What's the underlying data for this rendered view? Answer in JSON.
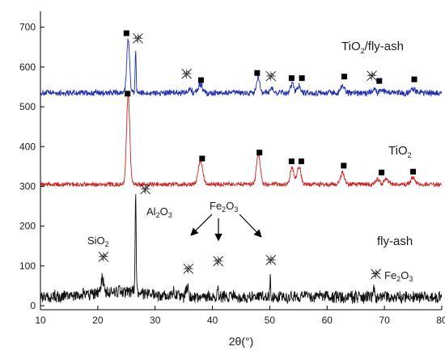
{
  "chart_data": {
    "type": "line",
    "xlabel": "2θ(°)",
    "ylabel": "",
    "xlim": [
      10,
      80
    ],
    "ylim": [
      -10,
      740
    ],
    "x_ticks": [
      10,
      20,
      30,
      40,
      50,
      60,
      70,
      80
    ],
    "y_ticks": [
      0,
      100,
      200,
      300,
      400,
      500,
      600,
      700
    ],
    "grid": false,
    "series": [
      {
        "name": "TiO2/fly-ash",
        "color": "#1f2fb0",
        "baseline": 535,
        "noise": 7,
        "peaks": [
          {
            "x": 25.3,
            "h": 135,
            "w": 0.35
          },
          {
            "x": 26.6,
            "h": 110,
            "w": 0.12
          },
          {
            "x": 36.0,
            "h": 12,
            "w": 0.4
          },
          {
            "x": 37.9,
            "h": 22,
            "w": 0.5
          },
          {
            "x": 48.0,
            "h": 40,
            "w": 0.4
          },
          {
            "x": 50.3,
            "h": 10,
            "w": 0.4
          },
          {
            "x": 53.9,
            "h": 20,
            "w": 0.4
          },
          {
            "x": 55.1,
            "h": 18,
            "w": 0.4
          },
          {
            "x": 62.7,
            "h": 15,
            "w": 0.5
          },
          {
            "x": 68.2,
            "h": 10,
            "w": 0.4
          },
          {
            "x": 69.6,
            "h": 8,
            "w": 0.5
          },
          {
            "x": 75.0,
            "h": 10,
            "w": 0.5
          }
        ],
        "label_main": "TiO",
        "label_sub": "2",
        "label_rest": "/fly-ash"
      },
      {
        "name": "TiO2",
        "color": "#cc2222",
        "baseline": 305,
        "noise": 5,
        "peaks": [
          {
            "x": 25.3,
            "h": 225,
            "w": 0.4
          },
          {
            "x": 37.9,
            "h": 60,
            "w": 0.55
          },
          {
            "x": 48.0,
            "h": 75,
            "w": 0.45
          },
          {
            "x": 53.9,
            "h": 45,
            "w": 0.45
          },
          {
            "x": 55.1,
            "h": 45,
            "w": 0.45
          },
          {
            "x": 62.7,
            "h": 30,
            "w": 0.5
          },
          {
            "x": 68.8,
            "h": 12,
            "w": 0.5
          },
          {
            "x": 70.3,
            "h": 12,
            "w": 0.5
          },
          {
            "x": 75.0,
            "h": 18,
            "w": 0.5
          }
        ],
        "label_main": "TiO",
        "label_sub": "2",
        "label_rest": ""
      },
      {
        "name": "fly-ash",
        "color": "#111111",
        "baseline": 22,
        "noise": 14,
        "peaks": [
          {
            "x": 20.8,
            "h": 35,
            "w": 0.3
          },
          {
            "x": 26.6,
            "h": 250,
            "w": 0.12
          },
          {
            "x": 33.2,
            "h": 15,
            "w": 0.3
          },
          {
            "x": 35.6,
            "h": 22,
            "w": 0.3
          },
          {
            "x": 40.9,
            "h": 30,
            "w": 0.15
          },
          {
            "x": 50.1,
            "h": 58,
            "w": 0.1
          },
          {
            "x": 60.0,
            "h": 12,
            "w": 0.3
          },
          {
            "x": 68.2,
            "h": 22,
            "w": 0.2
          }
        ],
        "label_main": "fly-ash",
        "label_sub": "",
        "label_rest": ""
      }
    ],
    "markers": {
      "anatase_square": [
        {
          "x": 25.0,
          "y": 685
        },
        {
          "x": 38.0,
          "y": 567
        },
        {
          "x": 47.8,
          "y": 585
        },
        {
          "x": 53.8,
          "y": 572
        },
        {
          "x": 55.6,
          "y": 572
        },
        {
          "x": 63.0,
          "y": 576
        },
        {
          "x": 69.1,
          "y": 565
        },
        {
          "x": 75.2,
          "y": 569
        },
        {
          "x": 25.2,
          "y": 533
        },
        {
          "x": 38.2,
          "y": 370
        },
        {
          "x": 48.2,
          "y": 385
        },
        {
          "x": 53.8,
          "y": 363
        },
        {
          "x": 55.5,
          "y": 363
        },
        {
          "x": 62.9,
          "y": 352
        },
        {
          "x": 69.5,
          "y": 335
        },
        {
          "x": 75.0,
          "y": 337
        }
      ],
      "reference_cross": [
        {
          "x": 27.0,
          "y": 672
        },
        {
          "x": 35.5,
          "y": 583
        },
        {
          "x": 50.2,
          "y": 577
        },
        {
          "x": 67.8,
          "y": 578
        },
        {
          "x": 28.3,
          "y": 293
        },
        {
          "x": 21.0,
          "y": 123
        },
        {
          "x": 35.8,
          "y": 93
        },
        {
          "x": 41.0,
          "y": 112
        },
        {
          "x": 50.2,
          "y": 115
        },
        {
          "x": 68.5,
          "y": 80
        }
      ]
    },
    "annotations": {
      "al2o3": {
        "main": "Al",
        "sub1": "2",
        "mid": "O",
        "sub2": "3"
      },
      "sio2": {
        "main": "SiO",
        "sub": "2"
      },
      "fe2o3_top": {
        "main": "Fe",
        "sub1": "2",
        "mid": "O",
        "sub2": "3"
      },
      "fe2o3_right": {
        "main": "Fe",
        "sub1": "2",
        "mid": "O",
        "sub2": "3"
      }
    }
  }
}
